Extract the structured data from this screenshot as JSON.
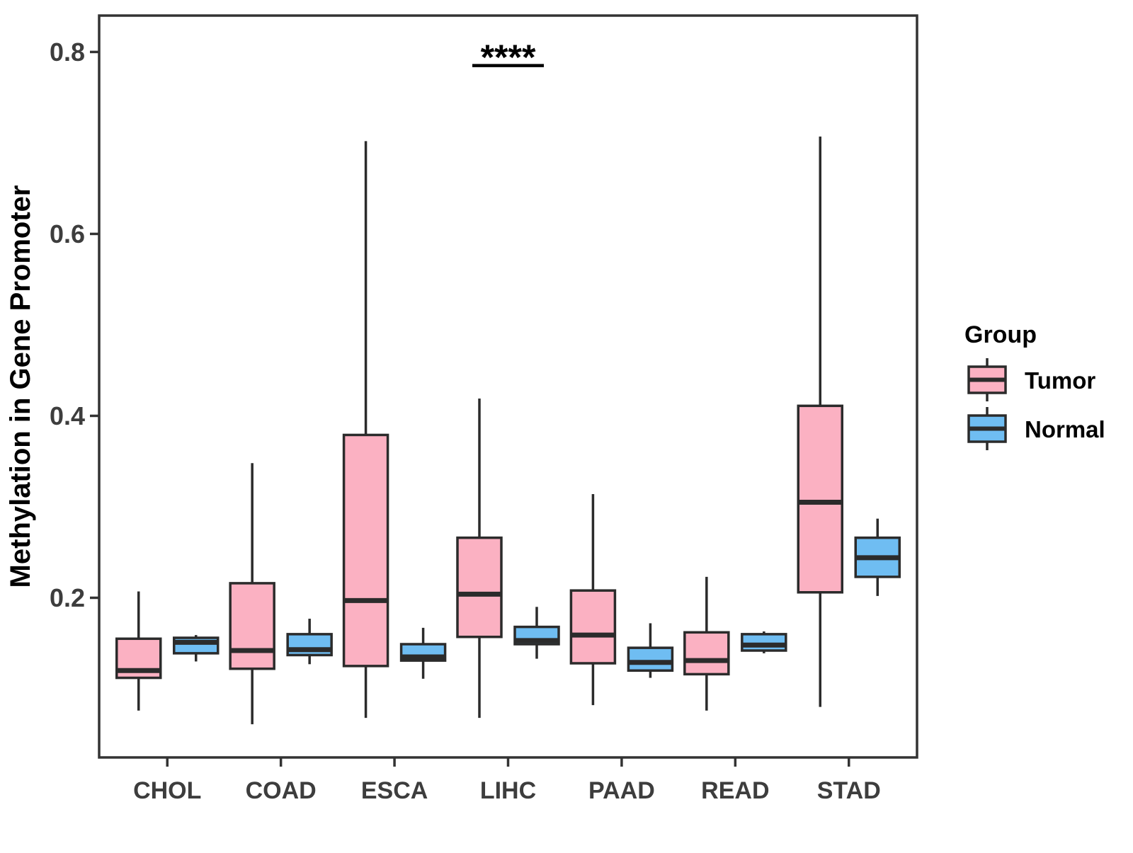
{
  "chart_data": {
    "type": "boxplot",
    "title": "",
    "ylabel": "Methylation in Gene Promoter",
    "xlabel": "",
    "categories": [
      "CHOL",
      "COAD",
      "ESCA",
      "LIHC",
      "PAAD",
      "READ",
      "STAD"
    ],
    "yticks": [
      0.2,
      0.4,
      0.6,
      0.8
    ],
    "ylim": [
      0.0245,
      0.84
    ],
    "grid": false,
    "legend": {
      "title": "Group",
      "position": "right",
      "entries": [
        "Tumor",
        "Normal"
      ]
    },
    "colors": {
      "tumor_fill": "#FBB1C2",
      "normal_fill": "#6FBDF2",
      "box_stroke": "#2B2B2B",
      "panel_border": "#333333",
      "axis_text": "#3D3D3D",
      "title_text": "#000000",
      "background": "#FFFFFF"
    },
    "series": [
      {
        "name": "Tumor",
        "fill": "#FBB1C2",
        "boxes": [
          {
            "lo": 0.076,
            "q1": 0.112,
            "med": 0.12,
            "q3": 0.155,
            "hi": 0.207
          },
          {
            "lo": 0.061,
            "q1": 0.122,
            "med": 0.142,
            "q3": 0.216,
            "hi": 0.348
          },
          {
            "lo": 0.068,
            "q1": 0.125,
            "med": 0.197,
            "q3": 0.379,
            "hi": 0.702
          },
          {
            "lo": 0.068,
            "q1": 0.157,
            "med": 0.204,
            "q3": 0.266,
            "hi": 0.419
          },
          {
            "lo": 0.082,
            "q1": 0.128,
            "med": 0.159,
            "q3": 0.208,
            "hi": 0.314
          },
          {
            "lo": 0.076,
            "q1": 0.116,
            "med": 0.131,
            "q3": 0.162,
            "hi": 0.223
          },
          {
            "lo": 0.08,
            "q1": 0.206,
            "med": 0.305,
            "q3": 0.411,
            "hi": 0.707
          }
        ]
      },
      {
        "name": "Normal",
        "fill": "#6FBDF2",
        "boxes": [
          {
            "lo": 0.13,
            "q1": 0.139,
            "med": 0.151,
            "q3": 0.156,
            "hi": 0.159
          },
          {
            "lo": 0.127,
            "q1": 0.137,
            "med": 0.143,
            "q3": 0.16,
            "hi": 0.177
          },
          {
            "lo": 0.111,
            "q1": 0.131,
            "med": 0.135,
            "q3": 0.149,
            "hi": 0.167
          },
          {
            "lo": 0.133,
            "q1": 0.149,
            "med": 0.153,
            "q3": 0.168,
            "hi": 0.19
          },
          {
            "lo": 0.112,
            "q1": 0.12,
            "med": 0.129,
            "q3": 0.145,
            "hi": 0.172
          },
          {
            "lo": 0.139,
            "q1": 0.142,
            "med": 0.148,
            "q3": 0.16,
            "hi": 0.163
          },
          {
            "lo": 0.202,
            "q1": 0.223,
            "med": 0.244,
            "q3": 0.266,
            "hi": 0.287
          }
        ]
      }
    ],
    "annotations": [
      {
        "text": "****",
        "category": "LIHC",
        "text_y": 0.802,
        "bar_y": 0.785
      }
    ]
  }
}
